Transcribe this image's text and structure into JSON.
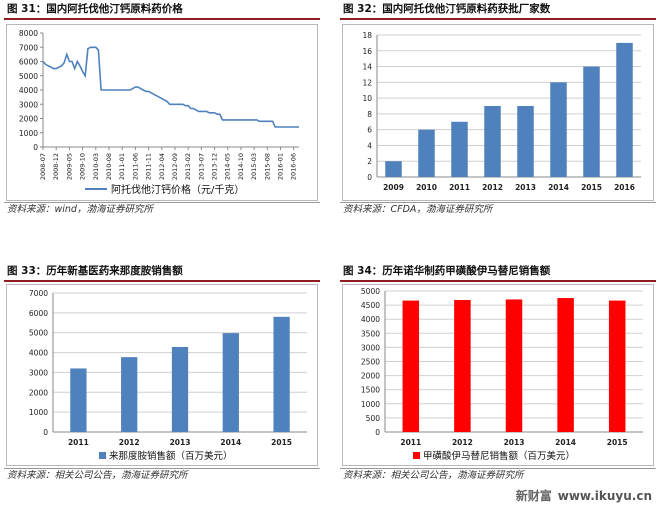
{
  "panels": [
    {
      "title": "图 31：国内阿托伐他汀钙原料药价格",
      "source": "资料来源：wind，渤海证券研究所"
    },
    {
      "title": "图 32：国内阿托伐他汀钙原料药获批厂家数",
      "source": "资料来源：CFDA，渤海证券研究所"
    },
    {
      "title": "图 33：历年新基医药来那度胺销售额",
      "source": "资料来源：相关公司公告，渤海证券研究所"
    },
    {
      "title": "图 34：历年诺华制药甲磺酸伊马替尼销售额",
      "source": "资料来源：相关公司公告，渤海证券研究所"
    }
  ],
  "watermark": {
    "brand": "新财富",
    "url": "www.ikuyu.cn"
  },
  "colors": {
    "blue": "#4f81bd",
    "red": "#ff0000",
    "title_rule": "#8f1d21"
  },
  "chart_data": [
    {
      "type": "line",
      "series": [
        {
          "name": "阿托伐他汀钙价格（元/千克）",
          "color": "#4f81bd",
          "x": [
            "2008-07",
            "2008-08",
            "2008-09",
            "2008-10",
            "2008-11",
            "2008-12",
            "2009-01",
            "2009-02",
            "2009-03",
            "2009-04",
            "2009-05",
            "2009-06",
            "2009-07",
            "2009-08",
            "2009-09",
            "2009-10",
            "2009-11",
            "2009-12",
            "2010-01",
            "2010-02",
            "2010-03",
            "2010-04",
            "2010-05",
            "2010-06",
            "2010-07",
            "2010-08",
            "2010-09",
            "2010-10",
            "2010-11",
            "2010-12",
            "2011-01",
            "2011-02",
            "2011-03",
            "2011-04",
            "2011-05",
            "2011-06",
            "2011-07",
            "2011-08",
            "2011-09",
            "2011-10",
            "2011-11",
            "2011-12",
            "2012-01",
            "2012-02",
            "2012-03",
            "2012-04",
            "2012-05",
            "2012-06",
            "2012-07",
            "2012-08",
            "2012-09",
            "2012-10",
            "2012-11",
            "2012-12",
            "2013-01",
            "2013-02",
            "2013-03",
            "2013-04",
            "2013-05",
            "2013-06",
            "2013-07",
            "2013-08",
            "2013-09",
            "2013-10",
            "2013-11",
            "2013-12",
            "2014-01",
            "2014-02",
            "2014-03",
            "2014-04",
            "2014-05",
            "2014-06",
            "2014-07",
            "2014-08",
            "2014-09",
            "2014-10",
            "2014-11",
            "2014-12",
            "2015-01",
            "2015-02",
            "2015-03",
            "2015-04",
            "2015-05",
            "2015-06",
            "2015-07",
            "2015-08",
            "2015-09",
            "2015-10",
            "2015-11",
            "2015-12",
            "2016-01",
            "2016-02",
            "2016-03",
            "2016-04",
            "2016-05",
            "2016-06",
            "2016-07",
            "2016-08"
          ],
          "values": [
            6000,
            5800,
            5700,
            5600,
            5500,
            5500,
            5600,
            5700,
            5900,
            6500,
            6000,
            6000,
            5500,
            6000,
            5700,
            5300,
            5000,
            6900,
            7000,
            7000,
            7000,
            6800,
            4000,
            4000,
            4000,
            4000,
            4000,
            4000,
            4000,
            4000,
            4000,
            4000,
            4000,
            4000,
            4100,
            4200,
            4200,
            4100,
            4000,
            3900,
            3900,
            3800,
            3700,
            3600,
            3500,
            3400,
            3300,
            3200,
            3000,
            3000,
            3000,
            3000,
            3000,
            3000,
            2900,
            2900,
            2700,
            2700,
            2600,
            2500,
            2500,
            2500,
            2500,
            2400,
            2400,
            2400,
            2300,
            2300,
            1900,
            1900,
            1900,
            1900,
            1900,
            1900,
            1900,
            1900,
            1900,
            1900,
            1900,
            1900,
            1900,
            1900,
            1800,
            1800,
            1800,
            1800,
            1800,
            1800,
            1400,
            1400,
            1400,
            1400,
            1400,
            1400,
            1400,
            1400,
            1400,
            1400
          ]
        }
      ],
      "x_ticks": [
        "2008-07",
        "2008-12",
        "2009-05",
        "2009-10",
        "2010-03",
        "2010-08",
        "2011-01",
        "2011-06",
        "2011-11",
        "2012-04",
        "2012-09",
        "2013-02",
        "2013-07",
        "2013-12",
        "2014-05",
        "2014-10",
        "2015-03",
        "2015-08",
        "2016-01",
        "2016-06"
      ],
      "ylim": [
        0,
        8000
      ],
      "y_ticks": [
        0,
        1000,
        2000,
        3000,
        4000,
        5000,
        6000,
        7000,
        8000
      ],
      "legend": "阿托伐他汀钙价格（元/千克）",
      "legend_position": "bottom",
      "grid": false
    },
    {
      "type": "bar",
      "categories": [
        "2009",
        "2010",
        "2011",
        "2012",
        "2013",
        "2014",
        "2015",
        "2016"
      ],
      "values": [
        2,
        6,
        7,
        9,
        9,
        12,
        14,
        17
      ],
      "color": "#4f81bd",
      "ylim": [
        0,
        18
      ],
      "y_ticks": [
        0,
        2,
        4,
        6,
        8,
        10,
        12,
        14,
        16,
        18
      ],
      "grid": true
    },
    {
      "type": "bar",
      "categories": [
        "2011",
        "2012",
        "2013",
        "2014",
        "2015"
      ],
      "values": [
        3200,
        3770,
        4280,
        4980,
        5800
      ],
      "series_name": "来那度胺销售额（百万美元）",
      "color": "#4f81bd",
      "ylim": [
        0,
        7000
      ],
      "y_ticks": [
        0,
        1000,
        2000,
        3000,
        4000,
        5000,
        6000,
        7000
      ],
      "legend_position": "bottom",
      "grid": true
    },
    {
      "type": "bar",
      "categories": [
        "2011",
        "2012",
        "2013",
        "2014",
        "2015"
      ],
      "values": [
        4660,
        4680,
        4700,
        4750,
        4660
      ],
      "series_name": "甲磺酸伊马替尼销售额（百万美元）",
      "color": "#ff0000",
      "ylim": [
        0,
        5000
      ],
      "y_ticks": [
        0,
        500,
        1000,
        1500,
        2000,
        2500,
        3000,
        3500,
        4000,
        4500,
        5000
      ],
      "legend_position": "bottom",
      "grid": true
    }
  ]
}
